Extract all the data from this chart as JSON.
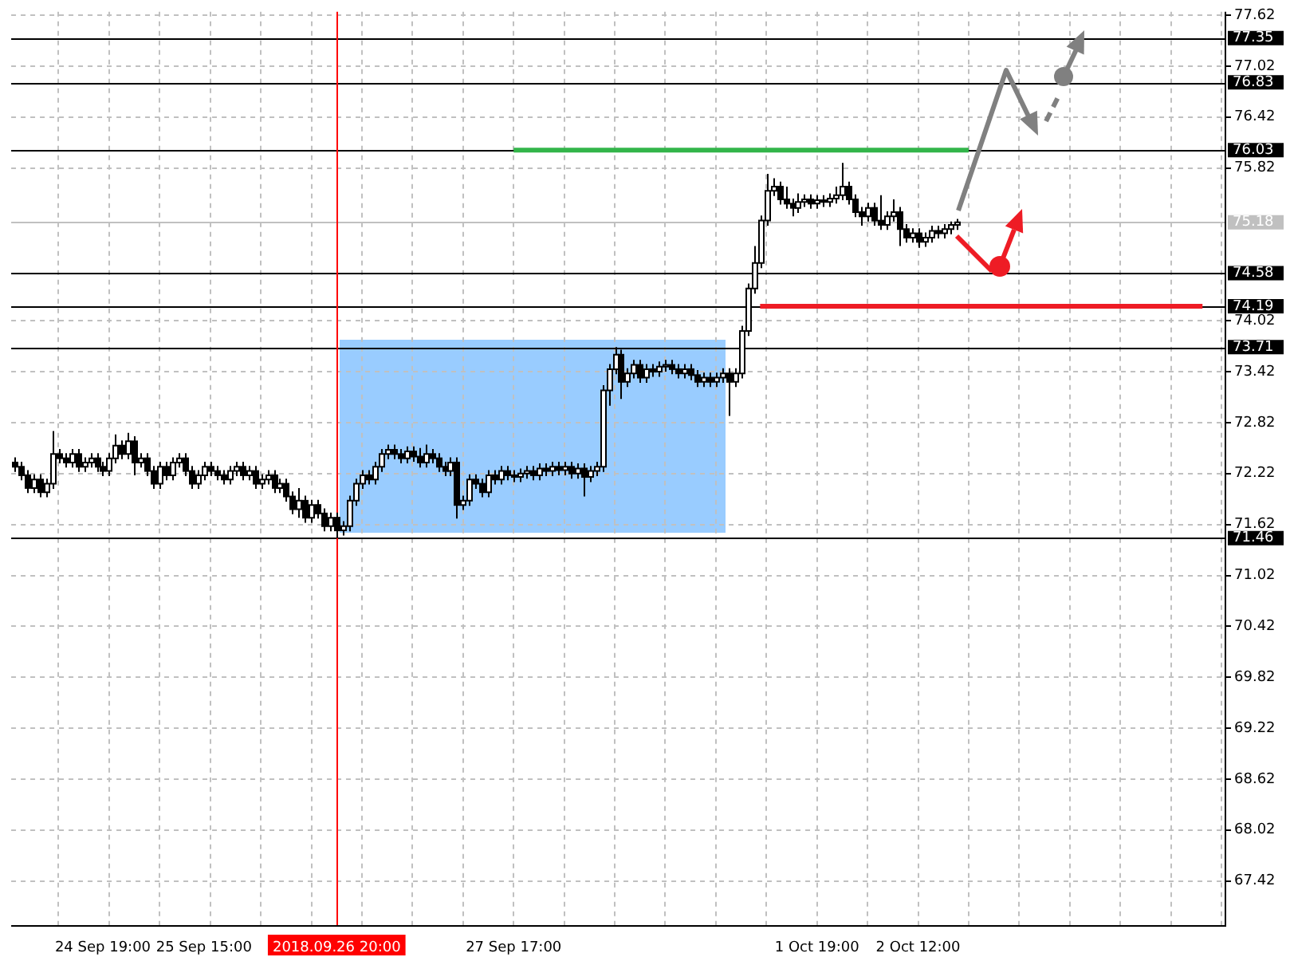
{
  "chart_data": {
    "type": "candlestick",
    "categories": [
      null,
      null,
      null,
      null,
      null,
      null,
      null,
      null,
      null,
      null,
      null,
      null,
      null,
      null,
      "24 Sep 19:00",
      null,
      null,
      null,
      null,
      null,
      null,
      null,
      null,
      null,
      null,
      null,
      null,
      null,
      null,
      null,
      "25 Sep 15:00",
      null,
      null,
      null,
      null,
      null,
      null,
      null,
      null,
      null,
      null,
      null,
      null,
      null,
      null,
      null,
      null,
      null,
      null,
      null,
      null,
      "2018.09.26 20:00",
      null,
      null,
      null,
      null,
      null,
      null,
      null,
      null,
      null,
      null,
      null,
      null,
      null,
      null,
      null,
      null,
      null,
      null,
      null,
      null,
      null,
      null,
      null,
      null,
      null,
      null,
      null,
      "27 Sep 17:00",
      null,
      null,
      null,
      null,
      null,
      null,
      null,
      null,
      null,
      null,
      null,
      null,
      null,
      null,
      null,
      null,
      null,
      null,
      null,
      null,
      null,
      null,
      null,
      null,
      null,
      null,
      null,
      null,
      null,
      null,
      null,
      null,
      null,
      null,
      null,
      null,
      null,
      null,
      null,
      null,
      null,
      null,
      null,
      null,
      null,
      null,
      null,
      "1 Oct 19:00",
      null,
      null,
      null,
      null,
      null,
      null,
      null,
      null,
      null,
      null,
      null,
      null,
      null,
      null,
      null,
      "2 Oct 12:00",
      null,
      null,
      null,
      null,
      null,
      null,
      null,
      null,
      null,
      null,
      null,
      null,
      null,
      null,
      null,
      null,
      null,
      null,
      null,
      null,
      null,
      null,
      null,
      null,
      null,
      null,
      null,
      null,
      null,
      null,
      null,
      null,
      null,
      null,
      null,
      null,
      null,
      null,
      null,
      null,
      null,
      null,
      null,
      null,
      null,
      null,
      null,
      null
    ],
    "ohlc": [
      [
        72.35,
        72.41,
        72.24,
        72.3
      ],
      [
        72.3,
        72.36,
        72.14,
        72.2
      ],
      [
        72.2,
        72.26,
        71.99,
        72.05
      ],
      [
        72.05,
        72.21,
        71.99,
        72.15
      ],
      [
        72.15,
        72.21,
        71.94,
        72.0
      ],
      [
        72.0,
        72.16,
        71.94,
        72.1
      ],
      [
        72.1,
        72.72,
        72.04,
        72.45
      ],
      [
        72.45,
        72.51,
        72.34,
        72.4
      ],
      [
        72.4,
        72.46,
        72.29,
        72.35
      ],
      [
        72.35,
        72.51,
        72.29,
        72.45
      ],
      [
        72.45,
        72.51,
        72.24,
        72.3
      ],
      [
        72.3,
        72.41,
        72.24,
        72.35
      ],
      [
        72.35,
        72.46,
        72.29,
        72.4
      ],
      [
        72.4,
        72.46,
        72.24,
        72.3
      ],
      [
        72.3,
        72.36,
        72.19,
        72.25
      ],
      [
        72.25,
        72.46,
        72.19,
        72.4
      ],
      [
        72.4,
        72.68,
        72.34,
        72.55
      ],
      [
        72.55,
        72.61,
        72.39,
        72.45
      ],
      [
        72.45,
        72.7,
        72.39,
        72.6
      ],
      [
        72.6,
        72.66,
        72.2,
        72.35
      ],
      [
        72.35,
        72.46,
        72.29,
        72.4
      ],
      [
        72.4,
        72.46,
        72.19,
        72.25
      ],
      [
        72.25,
        72.31,
        72.04,
        72.1
      ],
      [
        72.1,
        72.36,
        72.04,
        72.3
      ],
      [
        72.3,
        72.36,
        72.14,
        72.2
      ],
      [
        72.2,
        72.41,
        72.14,
        72.35
      ],
      [
        72.35,
        72.46,
        72.29,
        72.4
      ],
      [
        72.4,
        72.46,
        72.19,
        72.25
      ],
      [
        72.25,
        72.31,
        72.04,
        72.1
      ],
      [
        72.1,
        72.26,
        72.04,
        72.2
      ],
      [
        72.2,
        72.36,
        72.14,
        72.3
      ],
      [
        72.3,
        72.36,
        72.19,
        72.25
      ],
      [
        72.25,
        72.31,
        72.14,
        72.2
      ],
      [
        72.2,
        72.26,
        72.09,
        72.15
      ],
      [
        72.15,
        72.31,
        72.09,
        72.25
      ],
      [
        72.25,
        72.36,
        72.19,
        72.3
      ],
      [
        72.3,
        72.36,
        72.14,
        72.2
      ],
      [
        72.2,
        72.31,
        72.14,
        72.25
      ],
      [
        72.25,
        72.31,
        72.04,
        72.1
      ],
      [
        72.1,
        72.21,
        72.04,
        72.15
      ],
      [
        72.15,
        72.26,
        72.09,
        72.2
      ],
      [
        72.2,
        72.26,
        71.99,
        72.05
      ],
      [
        72.05,
        72.16,
        71.99,
        72.1
      ],
      [
        72.1,
        72.16,
        71.89,
        71.95
      ],
      [
        71.95,
        72.01,
        71.74,
        71.8
      ],
      [
        71.8,
        72.05,
        71.7,
        71.9
      ],
      [
        71.9,
        71.96,
        71.64,
        71.7
      ],
      [
        71.7,
        71.91,
        71.64,
        71.85
      ],
      [
        71.85,
        71.91,
        71.69,
        71.75
      ],
      [
        71.75,
        71.81,
        71.54,
        71.6
      ],
      [
        71.6,
        71.76,
        71.54,
        71.7
      ],
      [
        71.7,
        71.76,
        71.46,
        71.55
      ],
      [
        71.55,
        71.66,
        71.49,
        71.6
      ],
      [
        71.6,
        71.96,
        71.54,
        71.9
      ],
      [
        71.9,
        72.16,
        71.84,
        72.1
      ],
      [
        72.1,
        72.26,
        72.04,
        72.2
      ],
      [
        72.2,
        72.26,
        72.09,
        72.15
      ],
      [
        72.15,
        72.36,
        72.09,
        72.3
      ],
      [
        72.3,
        72.51,
        72.24,
        72.45
      ],
      [
        72.45,
        72.56,
        72.39,
        72.5
      ],
      [
        72.5,
        72.56,
        72.39,
        72.45
      ],
      [
        72.45,
        72.51,
        72.34,
        72.4
      ],
      [
        72.4,
        72.54,
        72.34,
        72.48
      ],
      [
        72.48,
        72.54,
        72.36,
        72.42
      ],
      [
        72.42,
        72.52,
        72.29,
        72.35
      ],
      [
        72.35,
        72.56,
        72.29,
        72.45
      ],
      [
        72.45,
        72.51,
        72.34,
        72.4
      ],
      [
        72.4,
        72.46,
        72.24,
        72.3
      ],
      [
        72.3,
        72.36,
        72.19,
        72.25
      ],
      [
        72.25,
        72.41,
        72.19,
        72.35
      ],
      [
        72.35,
        72.41,
        71.69,
        71.85
      ],
      [
        71.85,
        71.96,
        71.79,
        71.9
      ],
      [
        71.9,
        72.21,
        71.84,
        72.15
      ],
      [
        72.15,
        72.21,
        72.04,
        72.1
      ],
      [
        72.1,
        72.16,
        71.94,
        72.0
      ],
      [
        72.0,
        72.26,
        71.94,
        72.2
      ],
      [
        72.2,
        72.26,
        72.09,
        72.15
      ],
      [
        72.15,
        72.31,
        72.09,
        72.25
      ],
      [
        72.25,
        72.31,
        72.14,
        72.2
      ],
      [
        72.2,
        72.26,
        72.12,
        72.18
      ],
      [
        72.18,
        72.28,
        72.12,
        72.22
      ],
      [
        72.22,
        72.31,
        72.16,
        72.25
      ],
      [
        72.25,
        72.31,
        72.14,
        72.2
      ],
      [
        72.2,
        72.34,
        72.14,
        72.28
      ],
      [
        72.28,
        72.34,
        72.19,
        72.25
      ],
      [
        72.25,
        72.36,
        72.19,
        72.3
      ],
      [
        72.3,
        72.36,
        72.2,
        72.26
      ],
      [
        72.26,
        72.36,
        72.2,
        72.3
      ],
      [
        72.3,
        72.36,
        72.16,
        72.22
      ],
      [
        72.22,
        72.34,
        72.16,
        72.28
      ],
      [
        72.28,
        72.34,
        71.95,
        72.18
      ],
      [
        72.18,
        72.31,
        72.12,
        72.25
      ],
      [
        72.25,
        72.36,
        72.19,
        72.3
      ],
      [
        72.3,
        73.26,
        72.24,
        73.2
      ],
      [
        73.2,
        73.51,
        73.02,
        73.45
      ],
      [
        73.45,
        73.71,
        73.39,
        73.62
      ],
      [
        73.62,
        73.68,
        73.1,
        73.3
      ],
      [
        73.3,
        73.46,
        73.24,
        73.4
      ],
      [
        73.4,
        73.56,
        73.34,
        73.5
      ],
      [
        73.5,
        73.56,
        73.29,
        73.35
      ],
      [
        73.35,
        73.51,
        73.29,
        73.45
      ],
      [
        73.45,
        73.51,
        73.36,
        73.42
      ],
      [
        73.42,
        73.54,
        73.36,
        73.48
      ],
      [
        73.48,
        73.56,
        73.42,
        73.5
      ],
      [
        73.5,
        73.56,
        73.39,
        73.45
      ],
      [
        73.45,
        73.51,
        73.34,
        73.4
      ],
      [
        73.4,
        73.51,
        73.34,
        73.45
      ],
      [
        73.45,
        73.51,
        73.32,
        73.38
      ],
      [
        73.38,
        73.44,
        73.24,
        73.3
      ],
      [
        73.3,
        73.41,
        73.24,
        73.35
      ],
      [
        73.35,
        73.41,
        73.24,
        73.3
      ],
      [
        73.3,
        73.41,
        73.24,
        73.35
      ],
      [
        73.35,
        73.46,
        73.29,
        73.4
      ],
      [
        73.4,
        73.46,
        72.9,
        73.3
      ],
      [
        73.3,
        73.46,
        73.24,
        73.4
      ],
      [
        73.4,
        73.96,
        73.34,
        73.9
      ],
      [
        73.9,
        74.46,
        73.84,
        74.4
      ],
      [
        74.4,
        74.9,
        74.34,
        74.7
      ],
      [
        74.7,
        75.26,
        74.64,
        75.2
      ],
      [
        75.2,
        75.75,
        75.14,
        75.55
      ],
      [
        75.55,
        75.7,
        75.49,
        75.6
      ],
      [
        75.6,
        75.66,
        75.39,
        75.45
      ],
      [
        75.45,
        75.6,
        75.34,
        75.4
      ],
      [
        75.4,
        75.46,
        75.25,
        75.35
      ],
      [
        75.35,
        75.52,
        75.29,
        75.42
      ],
      [
        75.42,
        75.51,
        75.36,
        75.45
      ],
      [
        75.45,
        75.51,
        75.34,
        75.4
      ],
      [
        75.4,
        75.5,
        75.34,
        75.44
      ],
      [
        75.44,
        75.5,
        75.36,
        75.42
      ],
      [
        75.42,
        75.52,
        75.36,
        75.46
      ],
      [
        75.46,
        75.6,
        75.4,
        75.5
      ],
      [
        75.5,
        75.88,
        75.44,
        75.6
      ],
      [
        75.6,
        75.66,
        75.39,
        75.45
      ],
      [
        75.45,
        75.51,
        75.24,
        75.3
      ],
      [
        75.3,
        75.36,
        75.14,
        75.25
      ],
      [
        75.25,
        75.41,
        75.19,
        75.35
      ],
      [
        75.35,
        75.41,
        75.14,
        75.2
      ],
      [
        75.2,
        75.5,
        75.09,
        75.15
      ],
      [
        75.15,
        75.31,
        75.09,
        75.25
      ],
      [
        75.25,
        75.45,
        75.19,
        75.3
      ],
      [
        75.3,
        75.36,
        74.9,
        75.1
      ],
      [
        75.1,
        75.16,
        74.94,
        75.0
      ],
      [
        75.0,
        75.11,
        74.94,
        75.05
      ],
      [
        75.05,
        75.11,
        74.88,
        74.95
      ],
      [
        74.95,
        75.06,
        74.89,
        75.0
      ],
      [
        75.0,
        75.14,
        74.94,
        75.08
      ],
      [
        75.08,
        75.14,
        74.99,
        75.05
      ],
      [
        75.05,
        75.16,
        74.99,
        75.1
      ],
      [
        75.1,
        75.19,
        75.04,
        75.15
      ],
      [
        75.15,
        75.22,
        75.09,
        75.18
      ],
      null,
      null,
      null,
      null,
      null,
      null,
      null,
      null,
      null,
      null,
      null,
      null,
      null,
      null,
      null,
      null,
      null,
      null,
      null,
      null,
      null,
      null,
      null,
      null,
      null,
      null,
      null,
      null,
      null,
      null,
      null,
      null,
      null,
      null,
      null,
      null,
      null,
      null,
      null,
      null,
      null,
      null
    ],
    "series": [
      {
        "type": "line",
        "color": "#33b54a",
        "values": [
          null,
          null,
          null,
          null,
          null,
          null,
          null,
          null,
          null,
          null,
          null,
          null,
          null,
          null,
          null,
          null,
          null,
          null,
          null,
          null,
          null,
          null,
          null,
          null,
          null,
          null,
          null,
          null,
          null,
          null,
          null,
          null,
          null,
          null,
          null,
          null,
          null,
          null,
          null,
          null,
          null,
          null,
          null,
          null,
          null,
          null,
          null,
          null,
          null,
          null,
          null,
          null,
          null,
          null,
          null,
          null,
          null,
          null,
          null,
          null,
          null,
          null,
          null,
          null,
          null,
          null,
          null,
          null,
          null,
          null,
          null,
          null,
          null,
          null,
          null,
          null,
          null,
          null,
          null,
          76.03,
          76.03,
          76.03,
          76.03,
          76.03,
          76.03,
          76.03,
          76.03,
          76.03,
          76.03,
          76.03,
          76.03,
          76.03,
          76.03,
          76.03,
          76.03,
          76.03,
          76.03,
          76.03,
          76.03,
          76.03,
          76.03,
          76.03,
          76.03,
          76.03,
          76.03,
          76.03,
          76.03,
          76.03,
          76.03,
          76.03,
          76.03,
          76.03,
          76.03,
          76.03,
          76.03,
          76.03,
          76.03,
          76.03,
          76.03,
          76.03,
          76.03,
          76.03,
          76.03,
          76.03,
          76.03,
          76.03,
          76.03,
          76.03,
          76.03,
          76.03,
          76.03,
          76.03,
          76.03,
          76.03,
          76.03,
          76.03,
          76.03,
          76.03,
          76.03,
          76.03,
          76.03,
          76.03,
          76.03,
          76.03,
          76.03,
          76.03,
          76.03,
          76.03,
          76.03,
          76.03,
          76.03,
          76.03,
          null,
          null,
          null,
          null,
          null,
          null,
          null,
          null,
          null,
          null,
          null,
          null,
          null,
          null,
          null,
          null,
          null,
          null,
          null,
          null,
          null,
          null,
          null,
          null,
          null,
          null,
          null,
          null,
          null,
          null,
          null,
          null,
          null,
          null,
          null,
          null,
          null,
          null,
          null,
          null
        ]
      },
      {
        "type": "line",
        "color": "#ee1c25",
        "values": [
          null,
          null,
          null,
          null,
          null,
          null,
          null,
          null,
          null,
          null,
          null,
          null,
          null,
          null,
          null,
          null,
          null,
          null,
          null,
          null,
          null,
          null,
          null,
          null,
          null,
          null,
          null,
          null,
          null,
          null,
          null,
          null,
          null,
          null,
          null,
          null,
          null,
          null,
          null,
          null,
          null,
          null,
          null,
          null,
          null,
          null,
          null,
          null,
          null,
          null,
          null,
          null,
          null,
          null,
          null,
          null,
          null,
          null,
          null,
          null,
          null,
          null,
          null,
          null,
          null,
          null,
          null,
          null,
          null,
          null,
          null,
          null,
          null,
          null,
          null,
          null,
          null,
          null,
          null,
          null,
          null,
          null,
          null,
          null,
          null,
          null,
          null,
          null,
          null,
          null,
          null,
          null,
          null,
          null,
          null,
          null,
          null,
          null,
          null,
          null,
          null,
          null,
          null,
          null,
          null,
          null,
          null,
          null,
          null,
          null,
          null,
          null,
          null,
          null,
          null,
          null,
          null,
          null,
          74.19,
          74.19,
          74.19,
          74.19,
          74.19,
          74.19,
          74.19,
          74.19,
          74.19,
          74.19,
          74.19,
          74.19,
          74.19,
          74.19,
          74.19,
          74.19,
          74.19,
          74.19,
          74.19,
          74.19,
          74.19,
          74.19,
          74.19,
          74.19,
          74.19,
          74.19,
          74.19,
          74.19,
          74.19,
          74.19,
          74.19,
          74.19,
          74.19,
          74.19,
          74.19,
          74.19,
          74.19,
          74.19,
          74.19,
          74.19,
          74.19,
          74.19,
          74.19,
          74.19,
          74.19,
          74.19,
          74.19,
          74.19,
          74.19,
          74.19,
          74.19,
          74.19,
          74.19,
          74.19,
          74.19,
          74.19,
          74.19,
          74.19,
          74.19,
          74.19,
          74.19,
          74.19,
          74.19,
          74.19,
          74.19,
          74.19,
          74.19,
          74.19,
          74.19,
          74.19,
          74.19,
          null,
          null,
          null
        ]
      }
    ],
    "ylim": [
      66.9,
      77.66
    ],
    "yticks": [
      77.62,
      77.02,
      76.42,
      75.82,
      74.02,
      73.42,
      72.82,
      72.22,
      71.62,
      71.02,
      70.42,
      69.82,
      69.22,
      68.62,
      68.02,
      67.42
    ],
    "ref_lines": [
      {
        "axis": "y",
        "value": 77.35,
        "label": "77.35",
        "color": "#000000"
      },
      {
        "axis": "y",
        "value": 76.83,
        "label": "76.83",
        "color": "#000000"
      },
      {
        "axis": "y",
        "value": 76.03,
        "label": "76.03",
        "color": "#000000"
      },
      {
        "axis": "y",
        "value": 75.18,
        "label": "75.18",
        "color": "#c0c0c0"
      },
      {
        "axis": "y",
        "value": 74.58,
        "label": "74.58",
        "color": "#000000"
      },
      {
        "axis": "y",
        "value": 74.19,
        "label": "74.19",
        "color": "#000000"
      },
      {
        "axis": "y",
        "value": 73.71,
        "label": "73.71",
        "color": "#000000"
      },
      {
        "axis": "y",
        "value": 71.46,
        "label": "71.46",
        "color": "#000000"
      },
      {
        "axis": "x",
        "value": "2018.09.26 20:00",
        "color": "#ff0000"
      }
    ],
    "grid": true,
    "legend": false
  }
}
